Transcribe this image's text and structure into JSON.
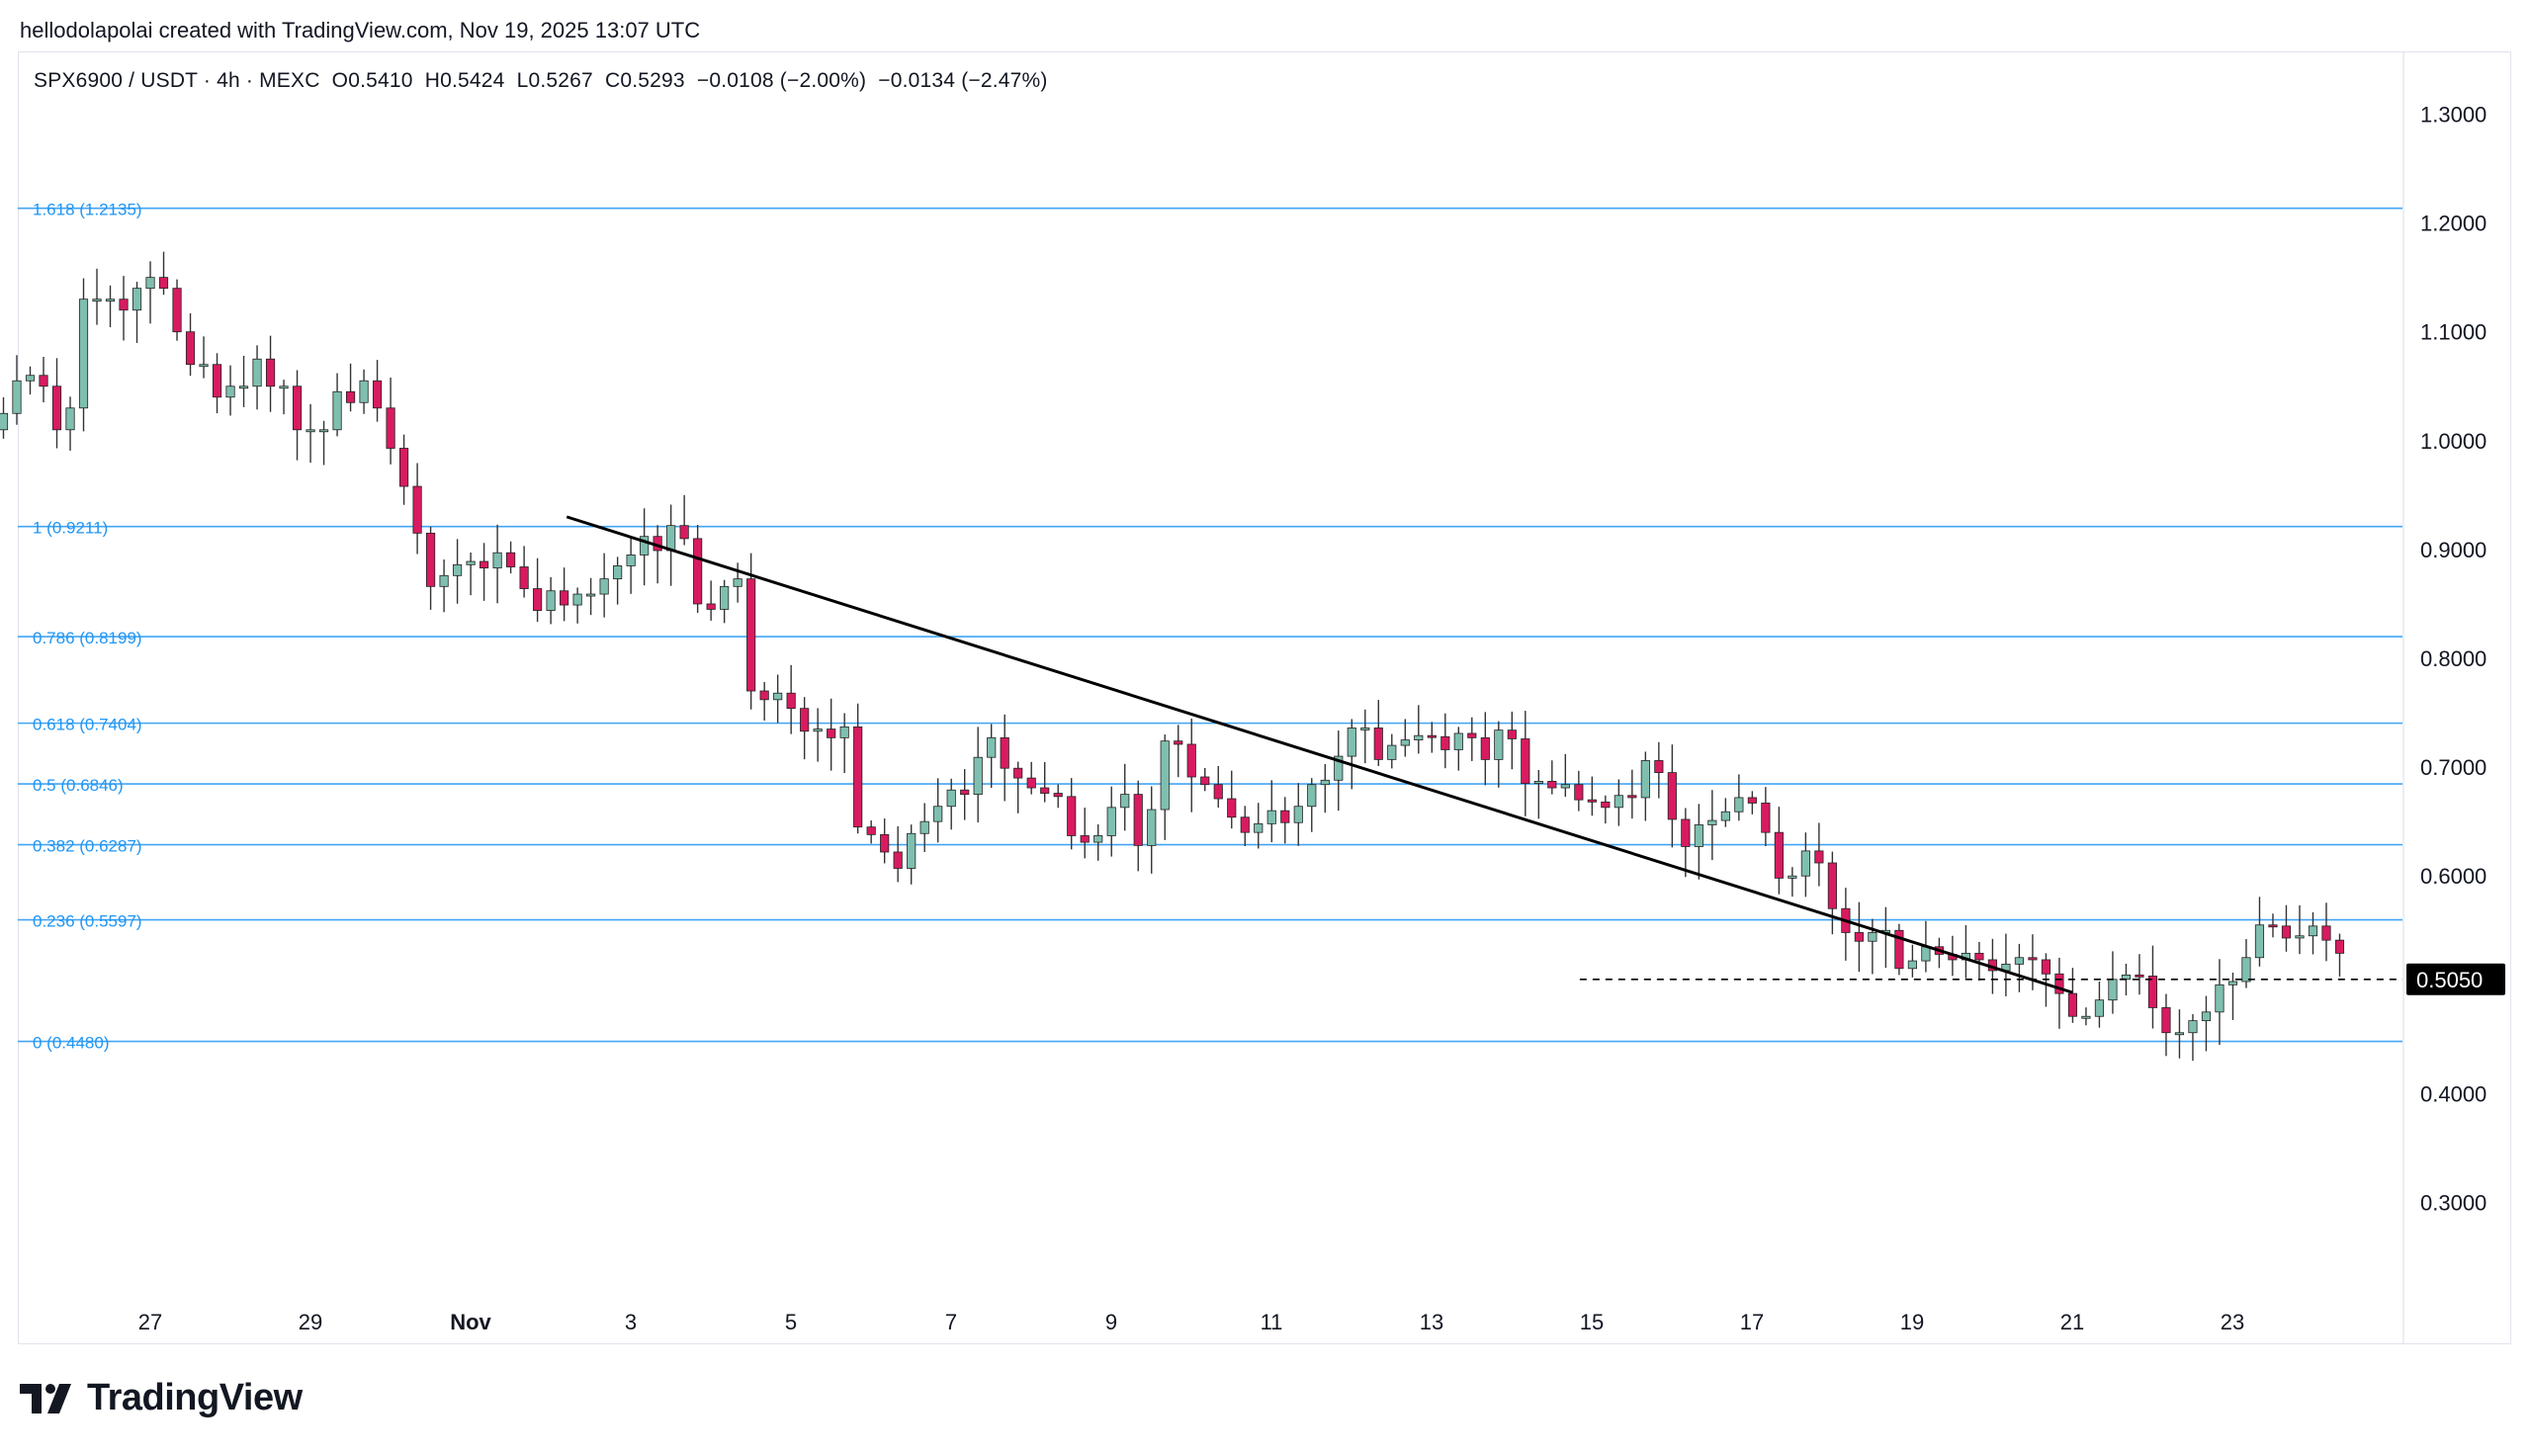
{
  "header": {
    "credit": "hellodolapolai created with TradingView.com, Nov 19, 2025 13:07 UTC"
  },
  "legend": {
    "symbol": "SPX6900 / USDT · 4h · MEXC",
    "open": "O0.5410",
    "high": "H0.5424",
    "low": "L0.5267",
    "close": "C0.5293",
    "change": "−0.0108 (−2.00%)",
    "change2": "−0.0134 (−2.47%)"
  },
  "brand": {
    "name": "TradingView",
    "icon": "tradingview-logo-icon"
  },
  "colors": {
    "up": "#7fbfb0",
    "down": "#d81b60",
    "fib": "#2196f3",
    "trend": "#000000",
    "label_bg": "#000000"
  },
  "chart_data": {
    "type": "candlestick",
    "ylim": [
      0.22,
      1.36
    ],
    "y_ticks": [
      "1.3000",
      "1.2000",
      "1.1000",
      "1.0000",
      "0.9000",
      "0.8000",
      "0.7000",
      "0.6000",
      "0.5000",
      "0.4000",
      "0.3000"
    ],
    "y_tick_values": [
      1.3,
      1.2,
      1.1,
      1.0,
      0.9,
      0.8,
      0.7,
      0.6,
      0.5,
      0.4,
      0.3
    ],
    "x_ticks": [
      {
        "label": "27",
        "day": 27
      },
      {
        "label": "29",
        "day": 29
      },
      {
        "label": "Nov",
        "day": 31
      },
      {
        "label": "3",
        "day": 33
      },
      {
        "label": "5",
        "day": 35
      },
      {
        "label": "7",
        "day": 37
      },
      {
        "label": "9",
        "day": 39
      },
      {
        "label": "11",
        "day": 41
      },
      {
        "label": "13",
        "day": 43
      },
      {
        "label": "15",
        "day": 45
      },
      {
        "label": "17",
        "day": 47
      },
      {
        "label": "19",
        "day": 49
      },
      {
        "label": "21",
        "day": 51
      },
      {
        "label": "23",
        "day": 53
      }
    ],
    "fib_levels": [
      {
        "label": "1.618 (1.2135)",
        "value": 1.2135
      },
      {
        "label": "1 (0.9211)",
        "value": 0.9211
      },
      {
        "label": "0.786 (0.8199)",
        "value": 0.8199
      },
      {
        "label": "0.618 (0.7404)",
        "value": 0.7404
      },
      {
        "label": "0.5 (0.6846)",
        "value": 0.6846
      },
      {
        "label": "0.382 (0.6287)",
        "value": 0.6287
      },
      {
        "label": "0.236 (0.5597)",
        "value": 0.5597
      },
      {
        "label": "0 (0.4480)",
        "value": 0.448
      }
    ],
    "trendline": {
      "from": {
        "day": 32.2,
        "price": 0.93
      },
      "to": {
        "day": 51.0,
        "price": 0.493
      }
    },
    "dashed_level": {
      "value": 0.505,
      "from_day": 44.85,
      "to_day": 51.0
    },
    "price_label": "0.5050",
    "closes": [
      1.01,
      1.025,
      1.055,
      1.06,
      1.05,
      1.01,
      1.03,
      1.13,
      1.13,
      1.13,
      1.12,
      1.14,
      1.15,
      1.14,
      1.1,
      1.07,
      1.07,
      1.04,
      1.05,
      1.05,
      1.075,
      1.05,
      1.05,
      1.01,
      1.01,
      1.01,
      1.045,
      1.035,
      1.055,
      1.03,
      0.993,
      0.958,
      0.915,
      0.866,
      0.876,
      0.886,
      0.889,
      0.883,
      0.897,
      0.884,
      0.864,
      0.844,
      0.862,
      0.849,
      0.859,
      0.859,
      0.873,
      0.885,
      0.895,
      0.912,
      0.899,
      0.922,
      0.91,
      0.85,
      0.845,
      0.866,
      0.873,
      0.77,
      0.762,
      0.768,
      0.754,
      0.733,
      0.735,
      0.727,
      0.737,
      0.645,
      0.638,
      0.622,
      0.607,
      0.639,
      0.65,
      0.664,
      0.679,
      0.675,
      0.709,
      0.727,
      0.699,
      0.69,
      0.681,
      0.676,
      0.673,
      0.637,
      0.631,
      0.637,
      0.663,
      0.675,
      0.628,
      0.661,
      0.724,
      0.721,
      0.691,
      0.684,
      0.671,
      0.654,
      0.64,
      0.648,
      0.66,
      0.649,
      0.664,
      0.684,
      0.688,
      0.71,
      0.736,
      0.736,
      0.707,
      0.72,
      0.725,
      0.729,
      0.728,
      0.716,
      0.731,
      0.727,
      0.707,
      0.734,
      0.726,
      0.685,
      0.687,
      0.681,
      0.684,
      0.67,
      0.668,
      0.663,
      0.674,
      0.672,
      0.706,
      0.695,
      0.652,
      0.627,
      0.647,
      0.651,
      0.659,
      0.672,
      0.667,
      0.64,
      0.598,
      0.6,
      0.623,
      0.612,
      0.57,
      0.548,
      0.54,
      0.548,
      0.55,
      0.515,
      0.522,
      0.535,
      0.528,
      0.523,
      0.529,
      0.523,
      0.513,
      0.519,
      0.525,
      0.523,
      0.51,
      0.492,
      0.471,
      0.471,
      0.486,
      0.505,
      0.509,
      0.508,
      0.479,
      0.456,
      0.456,
      0.467,
      0.475,
      0.5,
      0.503,
      0.525,
      0.555,
      0.554,
      0.543,
      0.545,
      0.554,
      0.541,
      0.529
    ],
    "day_start": 25.0,
    "bar_days": 0.1667,
    "max_day": 54.85
  }
}
